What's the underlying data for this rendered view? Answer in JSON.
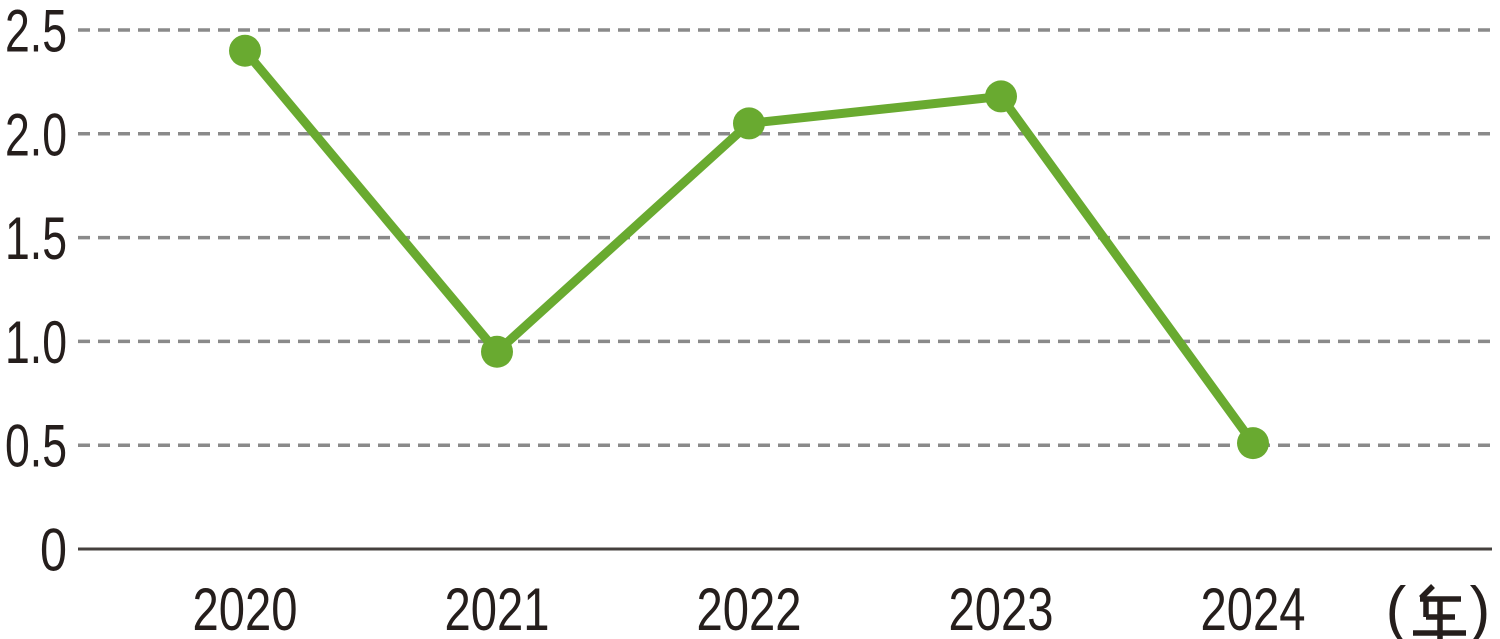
{
  "chart_data": {
    "type": "line",
    "title": "",
    "x": [
      "2020",
      "2021",
      "2022",
      "2023",
      "2024"
    ],
    "series": [
      {
        "name": "value",
        "values": [
          2.4,
          0.95,
          2.05,
          2.18,
          0.51
        ]
      }
    ],
    "xlabel_unit": "（年）",
    "ylabel": "",
    "ylim": [
      0,
      2.5
    ],
    "yticks": [
      0,
      0.5,
      1.0,
      1.5,
      2.0,
      2.5
    ],
    "ytick_labels": [
      "0",
      "0.5",
      "1.0",
      "1.5",
      "2.0",
      "2.5"
    ],
    "grid": "horizontal-dashed",
    "legend": "none",
    "marker": "circle",
    "colors": {
      "line": "#69aa30",
      "marker": "#69aa30",
      "grid": "#8a8a8a",
      "axis": "#45403d",
      "text": "#251e1c",
      "background": "#ffffff"
    }
  }
}
